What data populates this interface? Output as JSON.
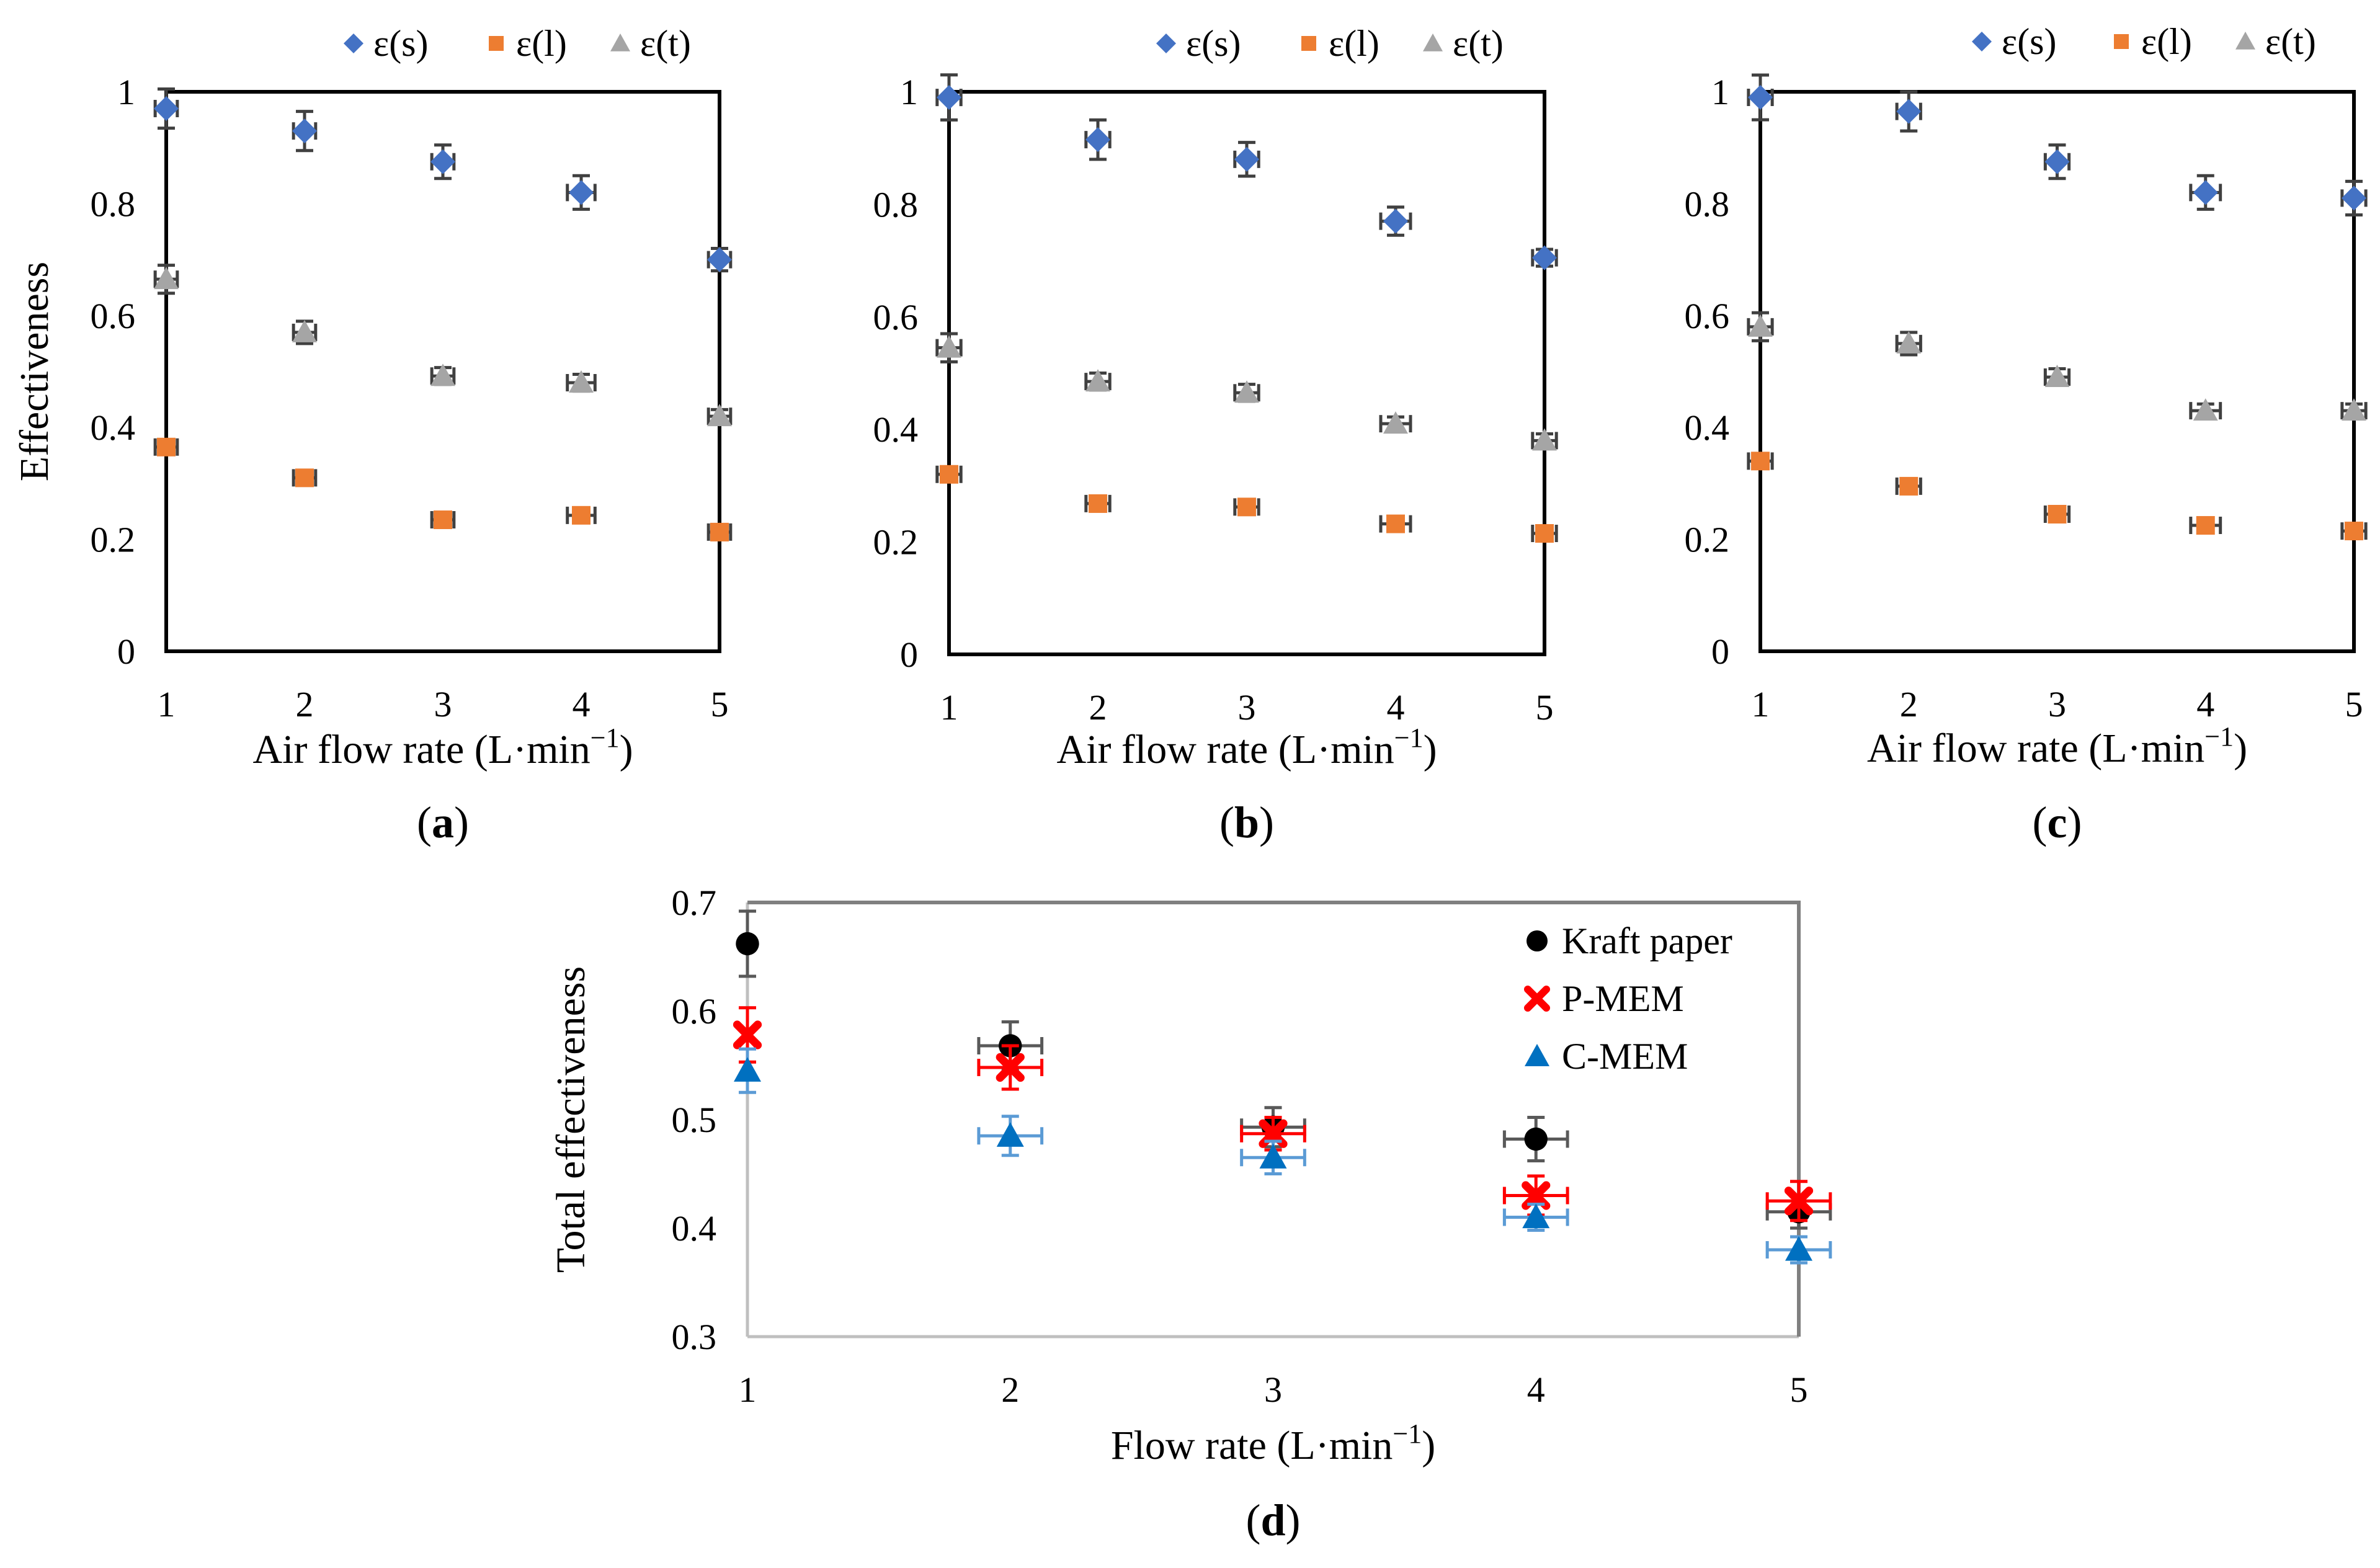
{
  "figure": {
    "panels": [
      {
        "label_open": "(",
        "label": "a",
        "label_close": ")"
      },
      {
        "label_open": "(",
        "label": "b",
        "label_close": ")"
      },
      {
        "label_open": "(",
        "label": "c",
        "label_close": ")"
      },
      {
        "label_open": "(",
        "label": "d",
        "label_close": ")"
      }
    ]
  },
  "chart_data": [
    {
      "id": "a",
      "type": "scatter",
      "title": "",
      "xlabel": "Air flow rate (L·min",
      "xlabel_sup": "−1",
      "xlabel_close": ")",
      "ylabel": "Effectiveness",
      "xlim": [
        1,
        5
      ],
      "ylim": [
        0,
        1
      ],
      "xticks": [
        "1",
        "2",
        "3",
        "4",
        "5"
      ],
      "yticks": [
        "0",
        "0.2",
        "0.4",
        "0.6",
        "0.8",
        "1"
      ],
      "legend_position": "top",
      "frame_color": "#000000",
      "series": [
        {
          "name": "ε(s)",
          "color": "#4472C4",
          "marker": "diamond",
          "x": [
            1,
            2,
            3,
            4,
            5
          ],
          "y": [
            0.97,
            0.93,
            0.875,
            0.82,
            0.7
          ],
          "yerr": [
            0.035,
            0.035,
            0.03,
            0.03,
            0.02
          ],
          "xerr": [
            0.08,
            0.08,
            0.08,
            0.1,
            0.08
          ]
        },
        {
          "name": "ε(l)",
          "color": "#ED7D31",
          "marker": "square",
          "x": [
            1,
            2,
            3,
            4,
            5
          ],
          "y": [
            0.365,
            0.31,
            0.235,
            0.243,
            0.213
          ],
          "yerr": [
            0.012,
            0.012,
            0.012,
            0.012,
            0.01
          ],
          "xerr": [
            0.08,
            0.08,
            0.08,
            0.1,
            0.08
          ]
        },
        {
          "name": "ε(t)",
          "color": "#A5A5A5",
          "marker": "triangle",
          "x": [
            1,
            2,
            3,
            4,
            5
          ],
          "y": [
            0.665,
            0.57,
            0.492,
            0.48,
            0.42
          ],
          "yerr": [
            0.025,
            0.02,
            0.015,
            0.015,
            0.012
          ],
          "xerr": [
            0.08,
            0.08,
            0.08,
            0.1,
            0.08
          ]
        }
      ]
    },
    {
      "id": "b",
      "type": "scatter",
      "title": "",
      "xlabel": "Air flow rate (L·min",
      "xlabel_sup": "−1",
      "xlabel_close": ")",
      "ylabel": "",
      "xlim": [
        1,
        5
      ],
      "ylim": [
        0,
        1
      ],
      "xticks": [
        "1",
        "2",
        "3",
        "4",
        "5"
      ],
      "yticks": [
        "0",
        "0.2",
        "0.4",
        "0.6",
        "0.8",
        "1"
      ],
      "legend_position": "top",
      "frame_color": "#000000",
      "series": [
        {
          "name": "ε(s)",
          "color": "#4472C4",
          "marker": "diamond",
          "x": [
            1,
            2,
            3,
            4,
            5
          ],
          "y": [
            0.99,
            0.915,
            0.88,
            0.77,
            0.705
          ],
          "yerr": [
            0.04,
            0.035,
            0.03,
            0.025,
            0.015
          ],
          "xerr": [
            0.08,
            0.08,
            0.08,
            0.1,
            0.08
          ]
        },
        {
          "name": "ε(l)",
          "color": "#ED7D31",
          "marker": "square",
          "x": [
            1,
            2,
            3,
            4,
            5
          ],
          "y": [
            0.32,
            0.268,
            0.262,
            0.232,
            0.215
          ],
          "yerr": [
            0.012,
            0.012,
            0.012,
            0.01,
            0.01
          ],
          "xerr": [
            0.08,
            0.08,
            0.08,
            0.1,
            0.08
          ]
        },
        {
          "name": "ε(t)",
          "color": "#A5A5A5",
          "marker": "triangle",
          "x": [
            1,
            2,
            3,
            4,
            5
          ],
          "y": [
            0.545,
            0.485,
            0.465,
            0.41,
            0.38
          ],
          "yerr": [
            0.025,
            0.015,
            0.015,
            0.012,
            0.012
          ],
          "xerr": [
            0.08,
            0.08,
            0.08,
            0.1,
            0.08
          ]
        }
      ]
    },
    {
      "id": "c",
      "type": "scatter",
      "title": "",
      "xlabel": "Air flow rate (L·min",
      "xlabel_sup": "−1",
      "xlabel_close": ")",
      "ylabel": "",
      "xlim": [
        1,
        5
      ],
      "ylim": [
        0,
        1
      ],
      "xticks": [
        "1",
        "2",
        "3",
        "4",
        "5"
      ],
      "yticks": [
        "0",
        "0.2",
        "0.4",
        "0.6",
        "0.8",
        "1"
      ],
      "legend_position": "top",
      "frame_color": "#000000",
      "series": [
        {
          "name": "ε(s)",
          "color": "#4472C4",
          "marker": "diamond",
          "x": [
            1,
            2,
            3,
            4,
            5
          ],
          "y": [
            0.99,
            0.965,
            0.875,
            0.82,
            0.81
          ],
          "yerr": [
            0.04,
            0.035,
            0.03,
            0.03,
            0.03
          ],
          "xerr": [
            0.08,
            0.08,
            0.08,
            0.1,
            0.08
          ]
        },
        {
          "name": "ε(l)",
          "color": "#ED7D31",
          "marker": "square",
          "x": [
            1,
            2,
            3,
            4,
            5
          ],
          "y": [
            0.34,
            0.295,
            0.245,
            0.225,
            0.215
          ],
          "yerr": [
            0.012,
            0.012,
            0.012,
            0.012,
            0.01
          ],
          "xerr": [
            0.08,
            0.08,
            0.08,
            0.1,
            0.08
          ]
        },
        {
          "name": "ε(t)",
          "color": "#A5A5A5",
          "marker": "triangle",
          "x": [
            1,
            2,
            3,
            4,
            5
          ],
          "y": [
            0.58,
            0.55,
            0.49,
            0.43,
            0.43
          ],
          "yerr": [
            0.025,
            0.02,
            0.015,
            0.012,
            0.012
          ],
          "xerr": [
            0.08,
            0.08,
            0.08,
            0.1,
            0.08
          ]
        }
      ]
    },
    {
      "id": "d",
      "type": "scatter",
      "title": "",
      "xlabel": "Flow rate (L·min",
      "xlabel_sup": "−1",
      "xlabel_close": ")",
      "ylabel": "Total effectiveness",
      "xlim": [
        1,
        5
      ],
      "ylim": [
        0.3,
        0.7
      ],
      "xticks": [
        "1",
        "2",
        "3",
        "4",
        "5"
      ],
      "yticks": [
        "0.3",
        "0.4",
        "0.5",
        "0.6",
        "0.7"
      ],
      "legend_position": "top-right",
      "frame_color": "#808080",
      "series": [
        {
          "name": "Kraft paper",
          "color": "#000000",
          "errcolor": "#595959",
          "marker": "circle",
          "x": [
            1,
            2,
            3,
            4,
            5
          ],
          "y": [
            0.662,
            0.568,
            0.493,
            0.482,
            0.415
          ],
          "yerr": [
            0.03,
            0.022,
            0.018,
            0.02,
            0.015
          ],
          "xerr": [
            0.0,
            0.12,
            0.12,
            0.12,
            0.12
          ]
        },
        {
          "name": "P-MEM",
          "color": "#FF0000",
          "errcolor": "#FF0000",
          "marker": "x",
          "x": [
            1,
            2,
            3,
            4,
            5
          ],
          "y": [
            0.578,
            0.548,
            0.487,
            0.43,
            0.425
          ],
          "yerr": [
            0.025,
            0.02,
            0.015,
            0.018,
            0.018
          ],
          "xerr": [
            0.0,
            0.12,
            0.12,
            0.12,
            0.12
          ]
        },
        {
          "name": "C-MEM",
          "color": "#0070C0",
          "errcolor": "#5B9BD5",
          "marker": "triangle",
          "x": [
            1,
            2,
            3,
            4,
            5
          ],
          "y": [
            0.545,
            0.485,
            0.465,
            0.41,
            0.38
          ],
          "yerr": [
            0.02,
            0.018,
            0.015,
            0.012,
            0.012
          ],
          "xerr": [
            0.0,
            0.12,
            0.12,
            0.12,
            0.12
          ]
        }
      ]
    }
  ]
}
